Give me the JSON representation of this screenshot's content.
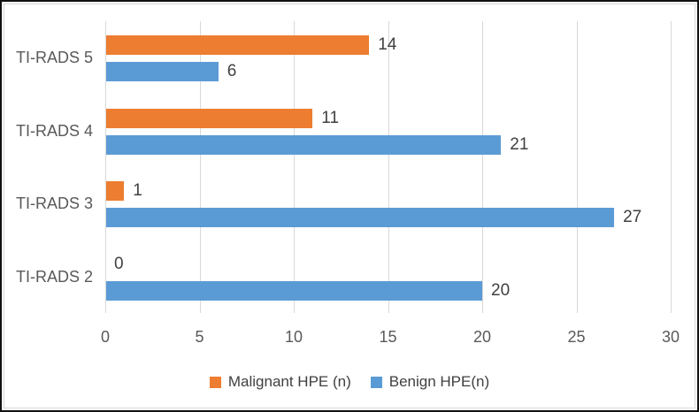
{
  "chart_data": {
    "type": "bar",
    "orientation": "horizontal",
    "title": "",
    "categories": [
      "TI-RADS 5",
      "TI-RADS 4",
      "TI-RADS 3",
      "TI-RADS 2"
    ],
    "series": [
      {
        "name": "Malignant HPE (n)",
        "color": "#ED7D31",
        "values": [
          14,
          11,
          1,
          0
        ]
      },
      {
        "name": "Benign HPE(n)",
        "color": "#5B9BD5",
        "values": [
          6,
          21,
          27,
          20
        ]
      }
    ],
    "x_ticks": [
      0,
      5,
      10,
      15,
      20,
      25,
      30
    ],
    "xlim": [
      0,
      30
    ],
    "grid": true,
    "data_labels": true,
    "legend_position": "bottom"
  },
  "colors": {
    "malignant": "#ED7D31",
    "benign": "#5B9BD5",
    "gridline": "#D9D9D9",
    "axis_text": "#595959",
    "value_text": "#404040",
    "legend_text": "#404040",
    "chart_border": "#D9D9D9",
    "outer_border": "#101010",
    "background": "#FFFFFF"
  }
}
